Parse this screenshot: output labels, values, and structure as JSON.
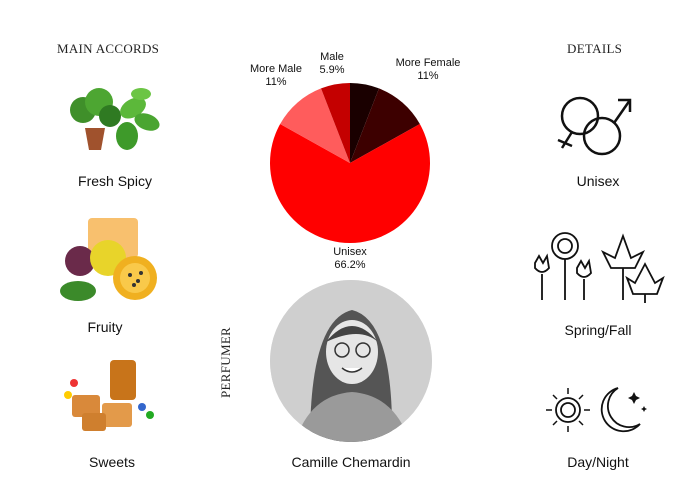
{
  "main_accords": {
    "heading": "MAIN ACCORDS",
    "items": [
      {
        "label": "Fresh Spicy",
        "icon": "mint-plant-icon"
      },
      {
        "label": "Fruity",
        "icon": "passion-fruit-icon"
      },
      {
        "label": "Sweets",
        "icon": "caramel-candy-icon"
      }
    ]
  },
  "details": {
    "heading": "DETAILS",
    "items": [
      {
        "label": "Unisex",
        "icon": "gender-symbols-icon"
      },
      {
        "label": "Spring/Fall",
        "icon": "flowers-leaves-icon"
      },
      {
        "label": "Day/Night",
        "icon": "sun-moon-icon"
      }
    ]
  },
  "perfumer": {
    "heading": "PERFUMER",
    "name": "Camille Chemardin"
  },
  "chart_data": {
    "type": "pie",
    "start": "top",
    "direction": "clockwise",
    "slices": [
      {
        "label": "",
        "value_label": "",
        "value": 5.9,
        "color": "#1a0000"
      },
      {
        "label": "More Female",
        "value_label": "11%",
        "value": 11,
        "color": "#3d0000"
      },
      {
        "label": "Unisex",
        "value_label": "66.2%",
        "value": 66.2,
        "color": "#ff0000"
      },
      {
        "label": "More Male",
        "value_label": "11%",
        "value": 11,
        "color": "#ff5c5c"
      },
      {
        "label": "Male",
        "value_label": "5.9%",
        "value": 5.9,
        "color": "#c40000"
      }
    ]
  }
}
